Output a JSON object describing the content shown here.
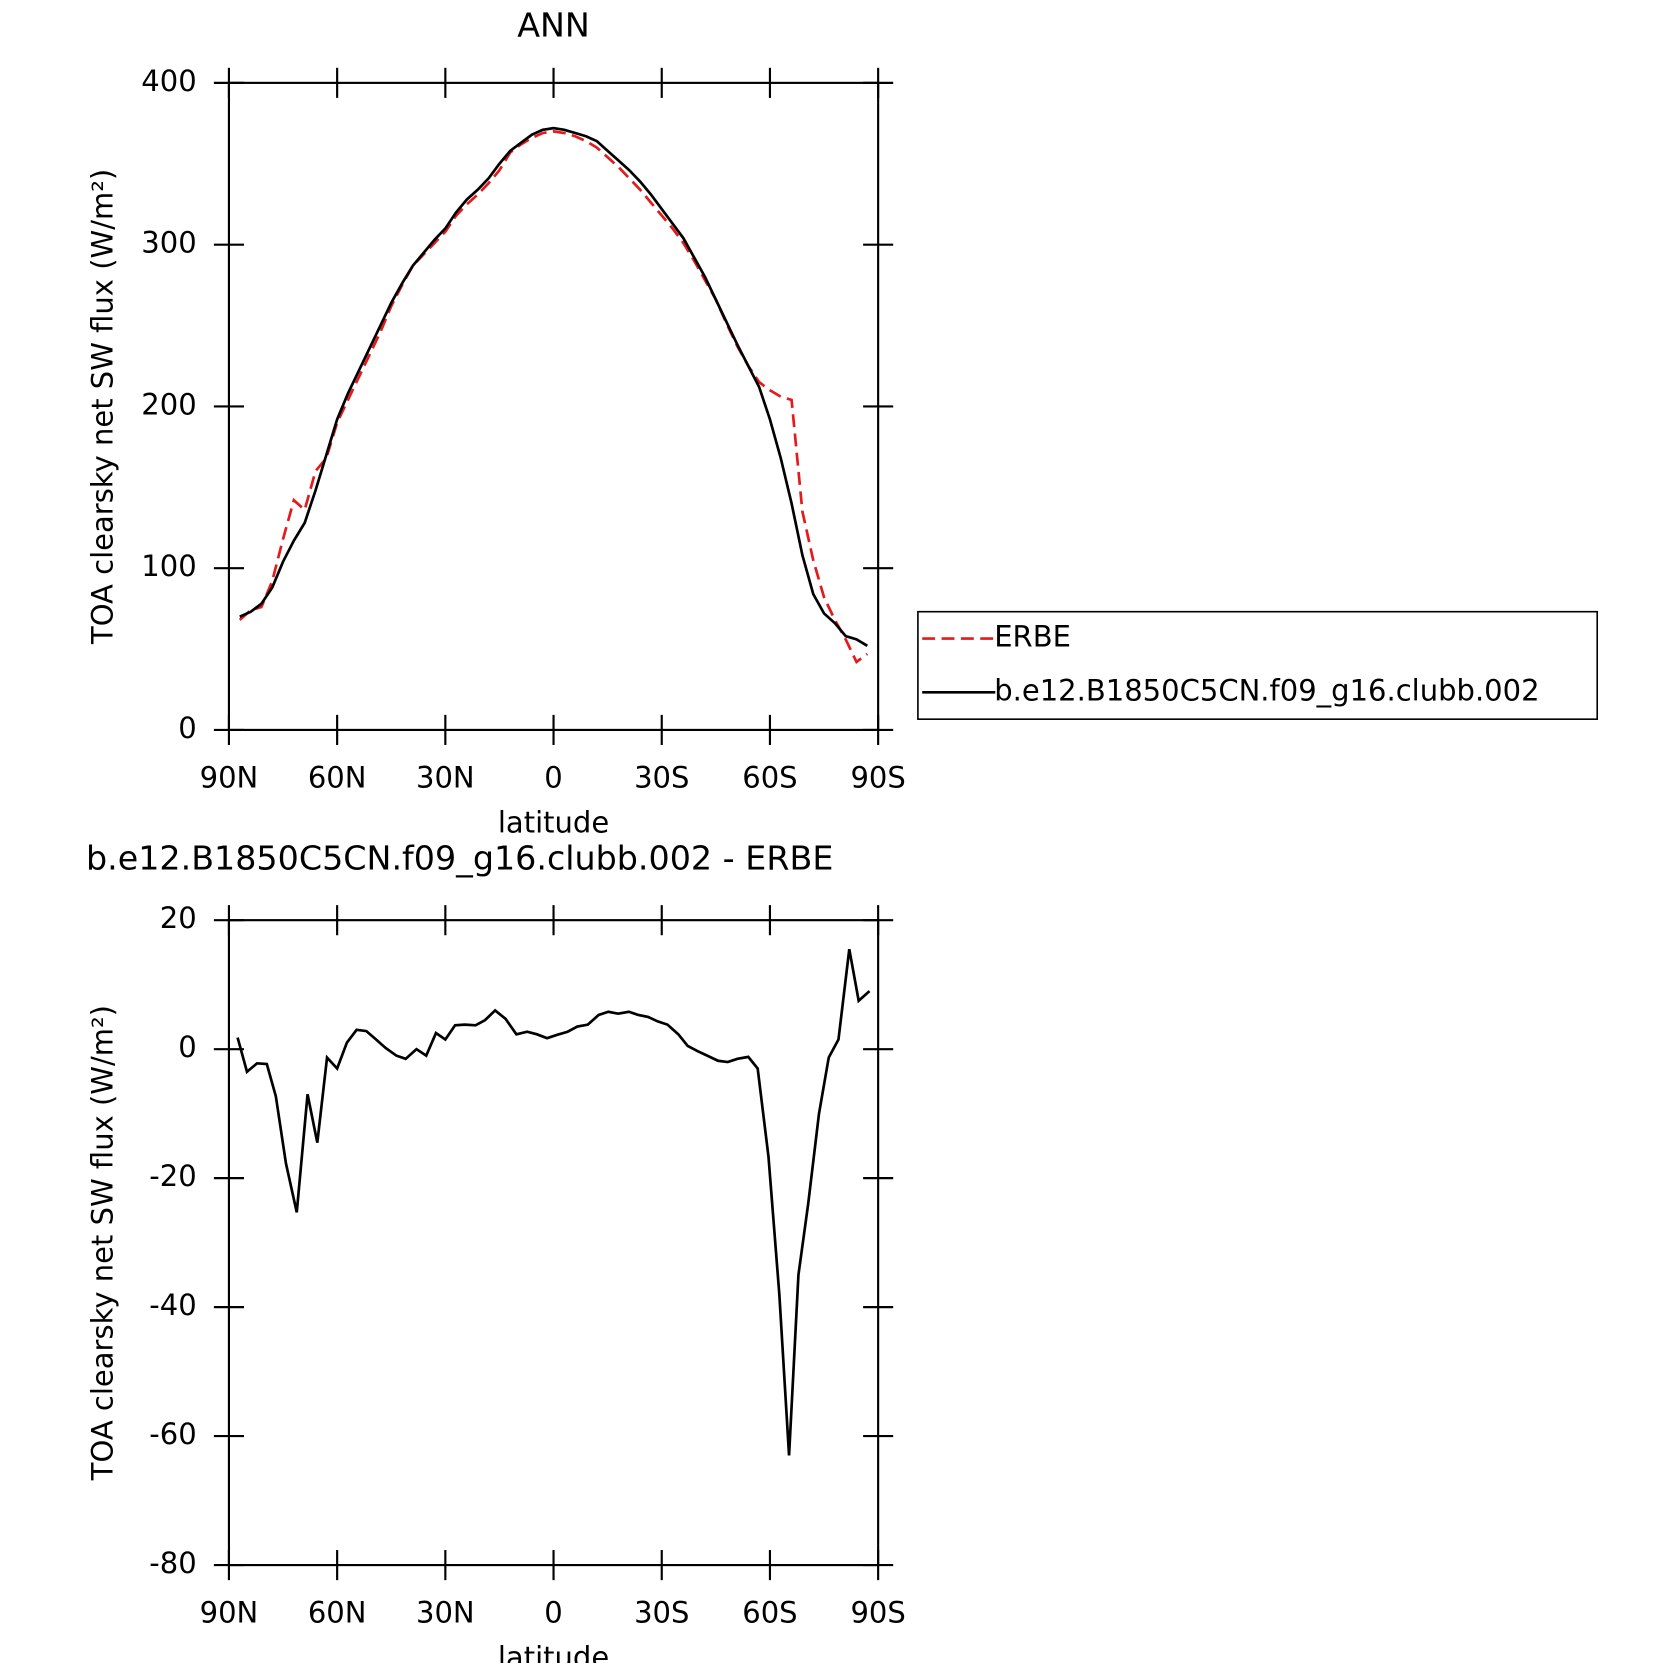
{
  "chart_data": [
    {
      "type": "line",
      "title": "ANN",
      "xlabel": "latitude",
      "ylabel": "TOA clearsky net SW flux (W/m²)",
      "xlim": [
        90,
        -90
      ],
      "xticks": [
        {
          "value": 90,
          "label": "90N"
        },
        {
          "value": 60,
          "label": "60N"
        },
        {
          "value": 30,
          "label": "30N"
        },
        0,
        {
          "value": -30,
          "label": "30S"
        },
        {
          "value": -60,
          "label": "60S"
        },
        {
          "value": -90,
          "label": "90S"
        }
      ],
      "ylim": [
        0,
        400
      ],
      "yticks": [
        0,
        100,
        200,
        300,
        400
      ],
      "legend": "right",
      "x": [
        87,
        84,
        81,
        78,
        75,
        72,
        69,
        66,
        63,
        60,
        57,
        54,
        51,
        48,
        45,
        42,
        39,
        36,
        33,
        30,
        27,
        24,
        21,
        18,
        15,
        12,
        9,
        6,
        3,
        0,
        -3,
        -6,
        -9,
        -12,
        -15,
        -18,
        -21,
        -24,
        -27,
        -30,
        -33,
        -36,
        -39,
        -42,
        -45,
        -48,
        -51,
        -54,
        -57,
        -60,
        -63,
        -66,
        -69,
        -72,
        -75,
        -78,
        -81,
        -84,
        -87
      ],
      "series": [
        {
          "name": "ERBE",
          "color": "#e41a1c",
          "dashed": true,
          "values": [
            68,
            74,
            76,
            92,
            118,
            142,
            136,
            160,
            168,
            190,
            204,
            218,
            232,
            246,
            262,
            275,
            287,
            294,
            301,
            308,
            318,
            325,
            331,
            338,
            346,
            357,
            362,
            366,
            369,
            370,
            369,
            367,
            364,
            360,
            354,
            348,
            341,
            334,
            326,
            318,
            310,
            301,
            290,
            278,
            266,
            251,
            237,
            225,
            215,
            210,
            206,
            204,
            135,
            105,
            82,
            68,
            56,
            42,
            47
          ]
        },
        {
          "name": "b.e12.B1850C5CN.f09_g16.clubb.002",
          "color": "#000000",
          "dashed": false,
          "values": [
            70,
            73,
            78,
            88,
            104,
            117,
            128,
            148,
            170,
            192,
            208,
            222,
            236,
            250,
            264,
            276,
            287,
            295,
            303,
            310,
            320,
            328,
            334,
            341,
            350,
            358,
            363,
            368,
            371,
            372,
            371,
            369,
            367,
            364,
            358,
            352,
            346,
            339,
            331,
            322,
            313,
            304,
            292,
            280,
            266,
            252,
            238,
            225,
            212,
            192,
            168,
            140,
            108,
            84,
            72,
            66,
            58,
            56,
            52
          ]
        }
      ]
    },
    {
      "type": "line",
      "title": "b.e12.B1850C5CN.f09_g16.clubb.002 - ERBE",
      "xlabel": "latitude",
      "ylabel": "TOA clearsky net SW flux (W/m²)",
      "xlim": [
        90,
        -90
      ],
      "xticks": [
        {
          "value": 90,
          "label": "90N"
        },
        {
          "value": 60,
          "label": "60N"
        },
        {
          "value": 30,
          "label": "30N"
        },
        0,
        {
          "value": -30,
          "label": "30S"
        },
        {
          "value": -60,
          "label": "60S"
        },
        {
          "value": -90,
          "label": "90S"
        }
      ],
      "ylim": [
        -80,
        20
      ],
      "yticks": [
        -80,
        -60,
        -40,
        -20,
        0,
        20
      ],
      "x": [
        87.6,
        85,
        82.2,
        79.5,
        77,
        74.2,
        71.2,
        68.2,
        65.5,
        62.8,
        60,
        57.3,
        54.6,
        51.9,
        49.2,
        46.6,
        43.6,
        41,
        38,
        35.3,
        32.6,
        30,
        27.3,
        24.6,
        21.6,
        19,
        16.2,
        13.3,
        10.3,
        7.3,
        4.6,
        1.8,
        -0.9,
        -3.9,
        -6.6,
        -9.5,
        -12.5,
        -15.2,
        -17.9,
        -20.9,
        -23.5,
        -26.2,
        -28.9,
        -31.6,
        -34.6,
        -37.2,
        -39.9,
        -42.6,
        -45.6,
        -48.3,
        -51,
        -54,
        -56.6,
        -59.6,
        -62.6,
        -65.3,
        -67.9,
        -70.6,
        -73.6,
        -76.3,
        -79,
        -82,
        -84.6,
        -87.6
      ],
      "color": "#000000",
      "values": [
        1.8,
        -3.5,
        -2.2,
        -2.3,
        -7.3,
        -17.7,
        -25.3,
        -7,
        -14.5,
        -1.3,
        -3,
        1,
        3,
        2.8,
        1.5,
        0.2,
        -1,
        -1.5,
        0,
        -1,
        2.5,
        1.5,
        3.7,
        3.8,
        3.7,
        4.5,
        6,
        4.7,
        2.3,
        2.7,
        2.3,
        1.7,
        2.2,
        2.7,
        3.5,
        3.8,
        5.3,
        5.8,
        5.5,
        5.8,
        5.3,
        5,
        4.3,
        3.8,
        2.3,
        0.5,
        -0.3,
        -1,
        -1.8,
        -2,
        -1.5,
        -1.2,
        -3,
        -16.7,
        -38,
        -63,
        -35,
        -24,
        -10,
        -1.3,
        1.5,
        15.5,
        7.5,
        9
      ]
    }
  ]
}
